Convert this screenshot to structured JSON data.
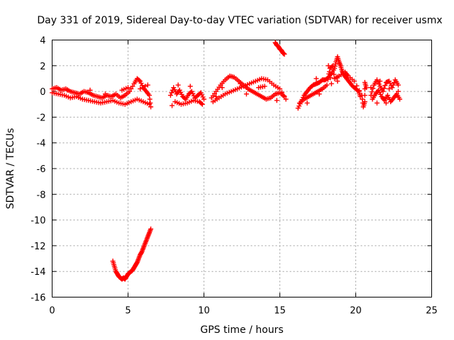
{
  "chart_data": {
    "type": "scatter",
    "title": "Day 331 of 2019, Sidereal Day-to-day VTEC variation (SDTVAR) for receiver usmx",
    "xlabel": "GPS time / hours",
    "ylabel": "SDTVAR / TECUs",
    "xlim": [
      0,
      25
    ],
    "ylim": [
      -16,
      4
    ],
    "xticks": [
      "0",
      "5",
      "10",
      "15",
      "20",
      "25"
    ],
    "yticks": [
      "4",
      "2",
      "0",
      "-2",
      "-4",
      "-6",
      "-8",
      "-10",
      "-12",
      "-14",
      "-16"
    ],
    "grid": true,
    "marker": "+",
    "color": "#ff0000",
    "series": [
      {
        "name": "segment-1",
        "points": [
          [
            0.0,
            0.2
          ],
          [
            0.3,
            0.3
          ],
          [
            0.6,
            0.1
          ],
          [
            0.9,
            0.2
          ],
          [
            1.2,
            0.0
          ],
          [
            1.5,
            -0.1
          ],
          [
            1.8,
            -0.2
          ],
          [
            2.1,
            0.0
          ],
          [
            2.4,
            -0.1
          ],
          [
            2.7,
            -0.3
          ],
          [
            3.0,
            -0.4
          ],
          [
            3.3,
            -0.5
          ],
          [
            3.6,
            -0.3
          ],
          [
            3.9,
            -0.4
          ],
          [
            4.2,
            -0.2
          ],
          [
            4.5,
            -0.5
          ],
          [
            4.8,
            -0.3
          ],
          [
            5.1,
            0.0
          ],
          [
            5.4,
            0.6
          ],
          [
            5.6,
            1.0
          ],
          [
            5.8,
            0.8
          ],
          [
            6.0,
            0.3
          ],
          [
            6.2,
            0.0
          ],
          [
            6.4,
            -0.3
          ],
          [
            6.5,
            -1.2
          ],
          [
            0.0,
            -0.1
          ],
          [
            0.4,
            -0.2
          ],
          [
            0.8,
            -0.3
          ],
          [
            1.2,
            -0.5
          ],
          [
            1.6,
            -0.4
          ],
          [
            2.0,
            -0.6
          ],
          [
            2.4,
            -0.7
          ],
          [
            2.8,
            -0.8
          ],
          [
            3.2,
            -0.9
          ],
          [
            3.6,
            -0.8
          ],
          [
            4.0,
            -0.7
          ],
          [
            4.4,
            -0.9
          ],
          [
            4.8,
            -1.0
          ],
          [
            5.2,
            -0.8
          ],
          [
            5.6,
            -0.6
          ],
          [
            6.0,
            -0.8
          ],
          [
            6.4,
            -1.0
          ],
          [
            1.0,
            0.1
          ],
          [
            2.5,
            0.1
          ],
          [
            3.5,
            -0.2
          ],
          [
            4.6,
            0.1
          ],
          [
            5.0,
            0.3
          ],
          [
            5.8,
            0.2
          ],
          [
            6.3,
            0.5
          ]
        ]
      },
      {
        "name": "segment-2",
        "points": [
          [
            7.8,
            -0.3
          ],
          [
            8.0,
            0.3
          ],
          [
            8.2,
            -0.2
          ],
          [
            8.4,
            0.1
          ],
          [
            8.6,
            -0.4
          ],
          [
            8.8,
            -0.6
          ],
          [
            9.0,
            -0.2
          ],
          [
            9.2,
            0.0
          ],
          [
            9.4,
            -0.5
          ],
          [
            9.6,
            -0.3
          ],
          [
            9.8,
            -0.1
          ],
          [
            10.0,
            -0.6
          ],
          [
            8.1,
            -0.8
          ],
          [
            8.5,
            -1.0
          ],
          [
            8.9,
            -0.9
          ],
          [
            9.3,
            -0.7
          ],
          [
            9.7,
            -0.8
          ],
          [
            9.9,
            -1.0
          ],
          [
            7.9,
            -1.1
          ],
          [
            8.3,
            0.5
          ],
          [
            9.1,
            0.4
          ]
        ]
      },
      {
        "name": "segment-3",
        "points": [
          [
            10.5,
            -0.5
          ],
          [
            10.8,
            0.0
          ],
          [
            11.1,
            0.5
          ],
          [
            11.4,
            0.9
          ],
          [
            11.7,
            1.2
          ],
          [
            12.0,
            1.1
          ],
          [
            12.3,
            0.8
          ],
          [
            12.6,
            0.5
          ],
          [
            12.9,
            0.2
          ],
          [
            13.2,
            0.0
          ],
          [
            13.5,
            -0.2
          ],
          [
            13.8,
            -0.4
          ],
          [
            14.1,
            -0.6
          ],
          [
            14.4,
            -0.5
          ],
          [
            14.7,
            -0.2
          ],
          [
            15.0,
            -0.1
          ],
          [
            15.3,
            -0.4
          ],
          [
            10.6,
            -0.8
          ],
          [
            11.0,
            -0.5
          ],
          [
            11.4,
            -0.2
          ],
          [
            11.8,
            0.0
          ],
          [
            12.2,
            0.2
          ],
          [
            12.6,
            0.4
          ],
          [
            13.0,
            0.6
          ],
          [
            13.4,
            0.8
          ],
          [
            13.8,
            1.0
          ],
          [
            14.2,
            0.9
          ],
          [
            14.6,
            0.5
          ],
          [
            15.0,
            0.2
          ],
          [
            15.4,
            -0.6
          ],
          [
            11.2,
            0.3
          ],
          [
            12.8,
            -0.2
          ],
          [
            13.6,
            0.3
          ],
          [
            14.0,
            0.4
          ],
          [
            14.8,
            -0.7
          ],
          [
            10.8,
            -0.4
          ],
          [
            12.4,
            0.6
          ]
        ]
      },
      {
        "name": "segment-4",
        "points": [
          [
            14.7,
            3.8
          ],
          [
            14.8,
            3.6
          ],
          [
            14.9,
            3.5
          ],
          [
            15.0,
            3.3
          ],
          [
            15.1,
            3.2
          ],
          [
            15.2,
            3.0
          ],
          [
            15.3,
            2.9
          ]
        ]
      },
      {
        "name": "segment-5",
        "points": [
          [
            4.0,
            -13.2
          ],
          [
            4.1,
            -13.6
          ],
          [
            4.2,
            -14.0
          ],
          [
            4.3,
            -14.2
          ],
          [
            4.4,
            -14.4
          ],
          [
            4.5,
            -14.5
          ],
          [
            4.6,
            -14.6
          ],
          [
            4.7,
            -14.5
          ],
          [
            4.8,
            -14.6
          ],
          [
            4.9,
            -14.4
          ],
          [
            5.0,
            -14.2
          ],
          [
            5.1,
            -14.1
          ],
          [
            5.2,
            -14.0
          ],
          [
            5.3,
            -13.9
          ],
          [
            5.4,
            -13.7
          ],
          [
            5.5,
            -13.5
          ],
          [
            5.6,
            -13.3
          ],
          [
            5.7,
            -13.0
          ],
          [
            5.8,
            -12.7
          ],
          [
            5.9,
            -12.5
          ],
          [
            6.0,
            -12.2
          ],
          [
            6.1,
            -11.9
          ],
          [
            6.2,
            -11.6
          ],
          [
            6.3,
            -11.3
          ],
          [
            6.4,
            -11.0
          ],
          [
            6.5,
            -10.7
          ]
        ]
      },
      {
        "name": "segment-6",
        "points": [
          [
            16.2,
            -1.3
          ],
          [
            16.4,
            -0.8
          ],
          [
            16.6,
            -0.3
          ],
          [
            16.8,
            0.0
          ],
          [
            17.0,
            0.3
          ],
          [
            17.2,
            0.5
          ],
          [
            17.4,
            0.6
          ],
          [
            17.6,
            0.7
          ],
          [
            17.8,
            0.9
          ],
          [
            18.0,
            0.9
          ],
          [
            18.2,
            1.1
          ],
          [
            18.4,
            1.4
          ],
          [
            18.6,
            1.8
          ],
          [
            18.7,
            2.3
          ],
          [
            18.8,
            2.7
          ],
          [
            18.9,
            2.3
          ],
          [
            19.0,
            2.0
          ],
          [
            19.1,
            1.6
          ],
          [
            19.2,
            1.3
          ],
          [
            19.4,
            1.0
          ],
          [
            19.6,
            0.7
          ],
          [
            19.8,
            0.4
          ],
          [
            20.0,
            0.2
          ],
          [
            20.2,
            0.0
          ],
          [
            20.3,
            -0.4
          ],
          [
            16.3,
            -0.9
          ],
          [
            16.6,
            -0.6
          ],
          [
            16.9,
            -0.4
          ],
          [
            17.2,
            -0.2
          ],
          [
            17.5,
            0.0
          ],
          [
            17.8,
            0.2
          ],
          [
            18.1,
            0.5
          ],
          [
            18.3,
            1.8
          ],
          [
            18.5,
            2.0
          ],
          [
            18.6,
            1.0
          ],
          [
            18.9,
            1.2
          ],
          [
            19.3,
            1.5
          ],
          [
            19.5,
            1.2
          ],
          [
            19.9,
            0.8
          ],
          [
            20.4,
            -0.3
          ],
          [
            20.5,
            -1.2
          ],
          [
            20.6,
            -0.8
          ],
          [
            20.6,
            0.7
          ],
          [
            20.7,
            0.3
          ],
          [
            18.2,
            2.0
          ],
          [
            18.4,
            0.6
          ],
          [
            17.6,
            -0.2
          ],
          [
            16.8,
            -0.9
          ],
          [
            17.4,
            1.0
          ],
          [
            18.8,
            0.8
          ]
        ]
      },
      {
        "name": "segment-7",
        "points": [
          [
            21.0,
            -0.3
          ],
          [
            21.2,
            0.5
          ],
          [
            21.4,
            0.9
          ],
          [
            21.6,
            0.4
          ],
          [
            21.8,
            0.0
          ],
          [
            22.0,
            0.7
          ],
          [
            22.2,
            0.8
          ],
          [
            22.4,
            0.3
          ],
          [
            22.6,
            0.9
          ],
          [
            22.8,
            0.5
          ],
          [
            21.1,
            -0.6
          ],
          [
            21.3,
            -0.2
          ],
          [
            21.5,
            0.1
          ],
          [
            21.7,
            -0.4
          ],
          [
            21.9,
            -0.7
          ],
          [
            22.1,
            -0.3
          ],
          [
            22.3,
            -0.8
          ],
          [
            22.5,
            -0.5
          ],
          [
            22.7,
            -0.2
          ],
          [
            22.9,
            -0.6
          ],
          [
            21.0,
            0.3
          ],
          [
            21.6,
            0.8
          ],
          [
            22.2,
            0.2
          ],
          [
            22.8,
            0.0
          ],
          [
            21.4,
            -0.9
          ],
          [
            22.0,
            -0.9
          ]
        ]
      }
    ]
  }
}
